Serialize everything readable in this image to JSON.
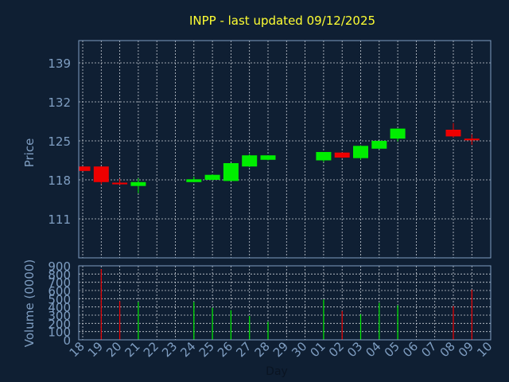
{
  "chart_data": [
    {
      "type": "candlestick",
      "title": "INPP - last updated 09/12/2025",
      "ylabel": "Price",
      "ylim": [
        104,
        143
      ],
      "yticks": [
        111,
        118,
        125,
        132,
        139
      ],
      "grid": true,
      "colors": {
        "up": "#00ee00",
        "down": "#ee0000"
      },
      "candles": [
        {
          "day": "18",
          "open": 120.4,
          "high": 120.4,
          "low": 119.6,
          "close": 119.6
        },
        {
          "day": "19",
          "open": 120.4,
          "high": 120.4,
          "low": 117.2,
          "close": 117.6
        },
        {
          "day": "20",
          "open": 117.5,
          "high": 118.2,
          "low": 117.1,
          "close": 117.2
        },
        {
          "day": "21",
          "open": 116.9,
          "high": 118.3,
          "low": 115.6,
          "close": 117.6
        },
        {
          "day": "24",
          "open": 117.6,
          "high": 118.6,
          "low": 117.6,
          "close": 118.1
        },
        {
          "day": "25",
          "open": 118.0,
          "high": 119.0,
          "low": 117.9,
          "close": 118.9
        },
        {
          "day": "26",
          "open": 117.8,
          "high": 121.0,
          "low": 117.8,
          "close": 121.0
        },
        {
          "day": "27",
          "open": 120.4,
          "high": 122.6,
          "low": 120.3,
          "close": 122.4
        },
        {
          "day": "28",
          "open": 121.6,
          "high": 122.4,
          "low": 121.5,
          "close": 122.4
        },
        {
          "day": "01",
          "open": 121.5,
          "high": 123.0,
          "low": 121.2,
          "close": 123.0
        },
        {
          "day": "02",
          "open": 122.9,
          "high": 122.9,
          "low": 121.9,
          "close": 122.0
        },
        {
          "day": "03",
          "open": 121.9,
          "high": 124.2,
          "low": 121.6,
          "close": 124.1
        },
        {
          "day": "04",
          "open": 123.6,
          "high": 125.0,
          "low": 123.5,
          "close": 125.0
        },
        {
          "day": "05",
          "open": 125.4,
          "high": 127.2,
          "low": 124.9,
          "close": 127.2
        },
        {
          "day": "08",
          "open": 127.0,
          "high": 128.2,
          "low": 125.6,
          "close": 125.8
        },
        {
          "day": "09",
          "open": 125.4,
          "high": 126.2,
          "low": 124.3,
          "close": 125.1
        }
      ]
    },
    {
      "type": "bar",
      "ylabel": "Volume (0000)",
      "xlabel": "Day",
      "ylim": [
        0,
        900
      ],
      "yticks": [
        0,
        100,
        200,
        300,
        400,
        500,
        600,
        700,
        800,
        900
      ],
      "grid": true,
      "categories": [
        "18",
        "19",
        "20",
        "21",
        "22",
        "23",
        "24",
        "25",
        "26",
        "27",
        "28",
        "29",
        "30",
        "01",
        "02",
        "03",
        "04",
        "05",
        "06",
        "07",
        "08",
        "09",
        "10"
      ],
      "bars": [
        {
          "day": "19",
          "value": 860,
          "direction": "down"
        },
        {
          "day": "20",
          "value": 470,
          "direction": "down"
        },
        {
          "day": "21",
          "value": 460,
          "direction": "up"
        },
        {
          "day": "24",
          "value": 460,
          "direction": "up"
        },
        {
          "day": "25",
          "value": 390,
          "direction": "up"
        },
        {
          "day": "26",
          "value": 360,
          "direction": "up"
        },
        {
          "day": "27",
          "value": 290,
          "direction": "up"
        },
        {
          "day": "28",
          "value": 220,
          "direction": "up"
        },
        {
          "day": "01",
          "value": 490,
          "direction": "up"
        },
        {
          "day": "02",
          "value": 350,
          "direction": "down"
        },
        {
          "day": "03",
          "value": 310,
          "direction": "up"
        },
        {
          "day": "04",
          "value": 450,
          "direction": "up"
        },
        {
          "day": "05",
          "value": 420,
          "direction": "up"
        },
        {
          "day": "08",
          "value": 410,
          "direction": "down"
        },
        {
          "day": "09",
          "value": 610,
          "direction": "down"
        }
      ]
    }
  ]
}
